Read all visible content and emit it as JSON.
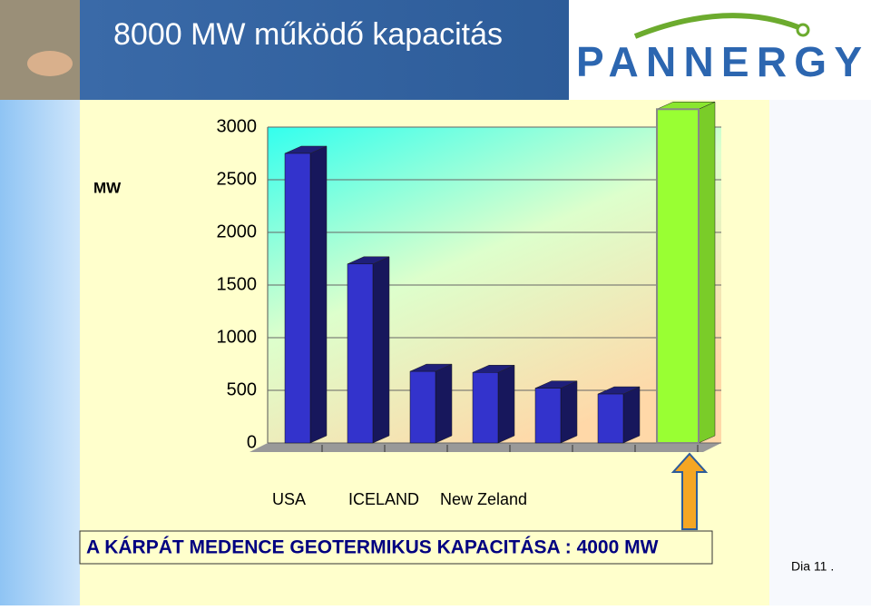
{
  "header": {
    "title": "8000 MW működő kapacitás",
    "logo": "PANNERGY"
  },
  "chart_data": {
    "type": "bar3d",
    "y_label": "MW",
    "categories": [
      "USA",
      "ICELAND",
      "New Zeland",
      null,
      null,
      null,
      null
    ],
    "values": [
      2750,
      1700,
      680,
      670,
      520,
      465,
      3170
    ],
    "colors": [
      "#3333cc",
      "#3333cc",
      "#3333cc",
      "#3333cc",
      "#3333cc",
      "#3333cc",
      "#99ff33"
    ],
    "ylim": [
      0,
      3000
    ],
    "yticks": [
      0,
      500,
      1000,
      1500,
      2000,
      2500,
      3000
    ],
    "grid": true
  },
  "banner": "A KÁRPÁT MEDENCE GEOTERMIKUS KAPACITÁSA : 4000 MW",
  "footer": "Dia 11 ."
}
